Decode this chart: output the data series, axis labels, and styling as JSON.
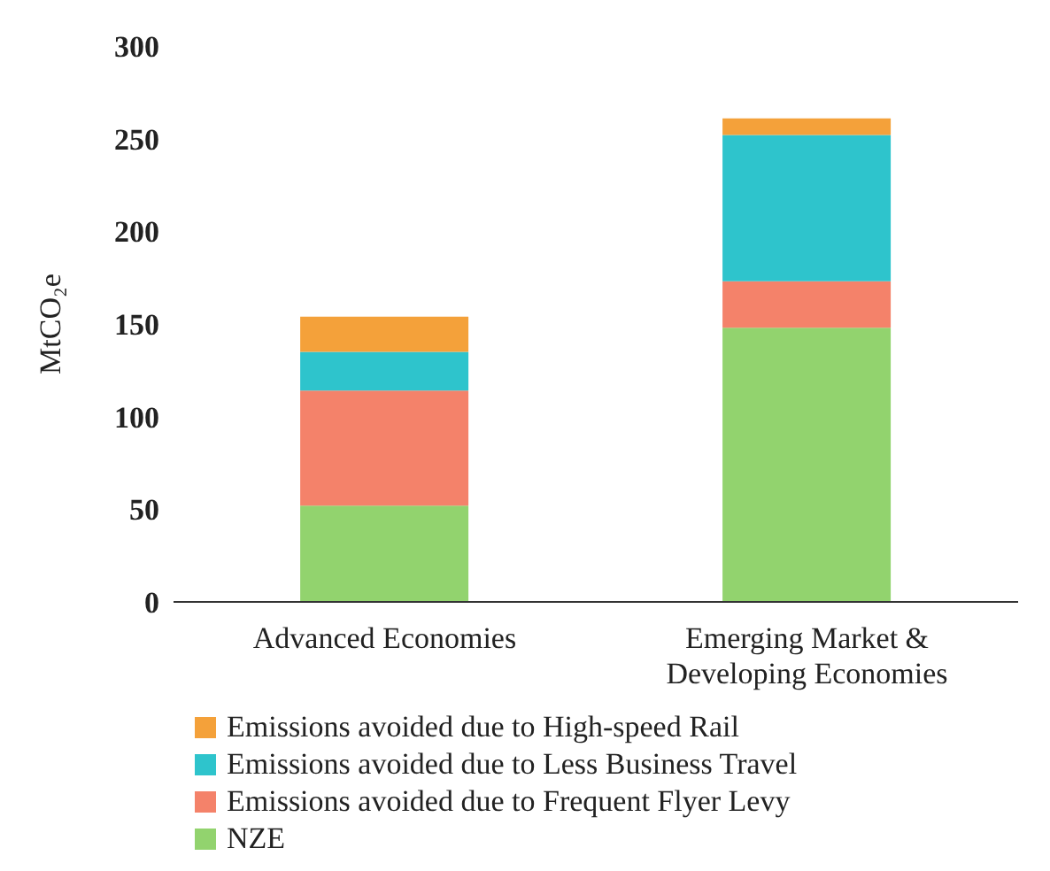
{
  "chart_data": {
    "type": "bar",
    "stacked": true,
    "ylabel": "MtCO₂e",
    "categories": [
      "Advanced Economies",
      "Emerging Market & Developing Economies"
    ],
    "series": [
      {
        "name": "NZE",
        "color": "#92d36e",
        "values": [
          52,
          148
        ]
      },
      {
        "name": "Emissions avoided due to Frequent Flyer Levy",
        "color": "#f4826a",
        "values": [
          62,
          25
        ]
      },
      {
        "name": "Emissions avoided due to Less Business Travel",
        "color": "#2ec4cc",
        "values": [
          21,
          79
        ]
      },
      {
        "name": "Emissions avoided due to High-speed Rail",
        "color": "#f4a13a",
        "values": [
          19,
          9
        ]
      }
    ],
    "ylim": [
      0,
      300
    ],
    "yticks": [
      0,
      50,
      100,
      150,
      200,
      250,
      300
    ],
    "grid": false,
    "legend": "bottom"
  }
}
